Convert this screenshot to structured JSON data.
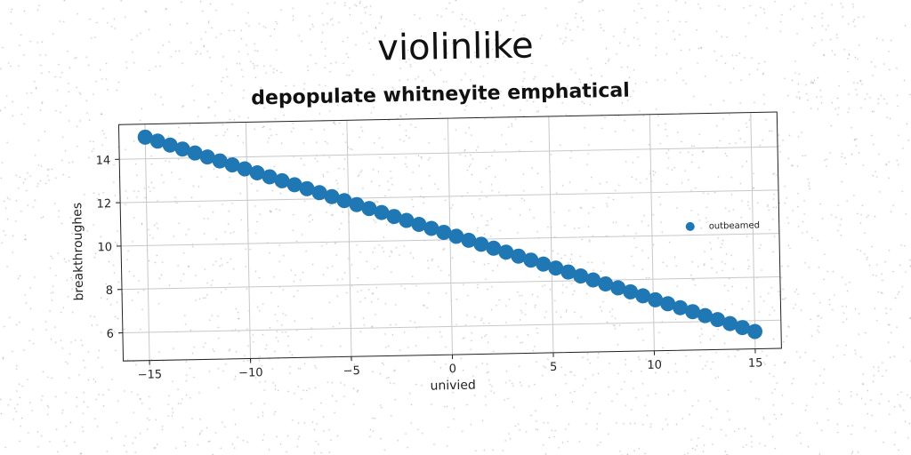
{
  "header": {
    "title": "violinlike",
    "subtitle": "depopulate whitneyite emphatical"
  },
  "chart_data": {
    "type": "scatter",
    "title": "depopulate whitneyite emphatical",
    "xlabel": "univied",
    "ylabel": "breakthroughes",
    "xlim": [
      -16.3,
      16.3
    ],
    "ylim": [
      4.7,
      15.6
    ],
    "xticks": [
      -15,
      -10,
      -5,
      0,
      5,
      10,
      15
    ],
    "xtick_labels": [
      "−15",
      "−10",
      "−5",
      "0",
      "5",
      "10",
      "15"
    ],
    "yticks": [
      6,
      8,
      10,
      12,
      14
    ],
    "ytick_labels": [
      "6",
      "8",
      "10",
      "12",
      "14"
    ],
    "grid": true,
    "legend_position": "right",
    "series": [
      {
        "name": "outbeamed",
        "color": "#1f77b4",
        "x_start": -15,
        "x_end": 15,
        "n_points": 50,
        "y_start": 15.0,
        "y_end": 5.5
      }
    ]
  }
}
